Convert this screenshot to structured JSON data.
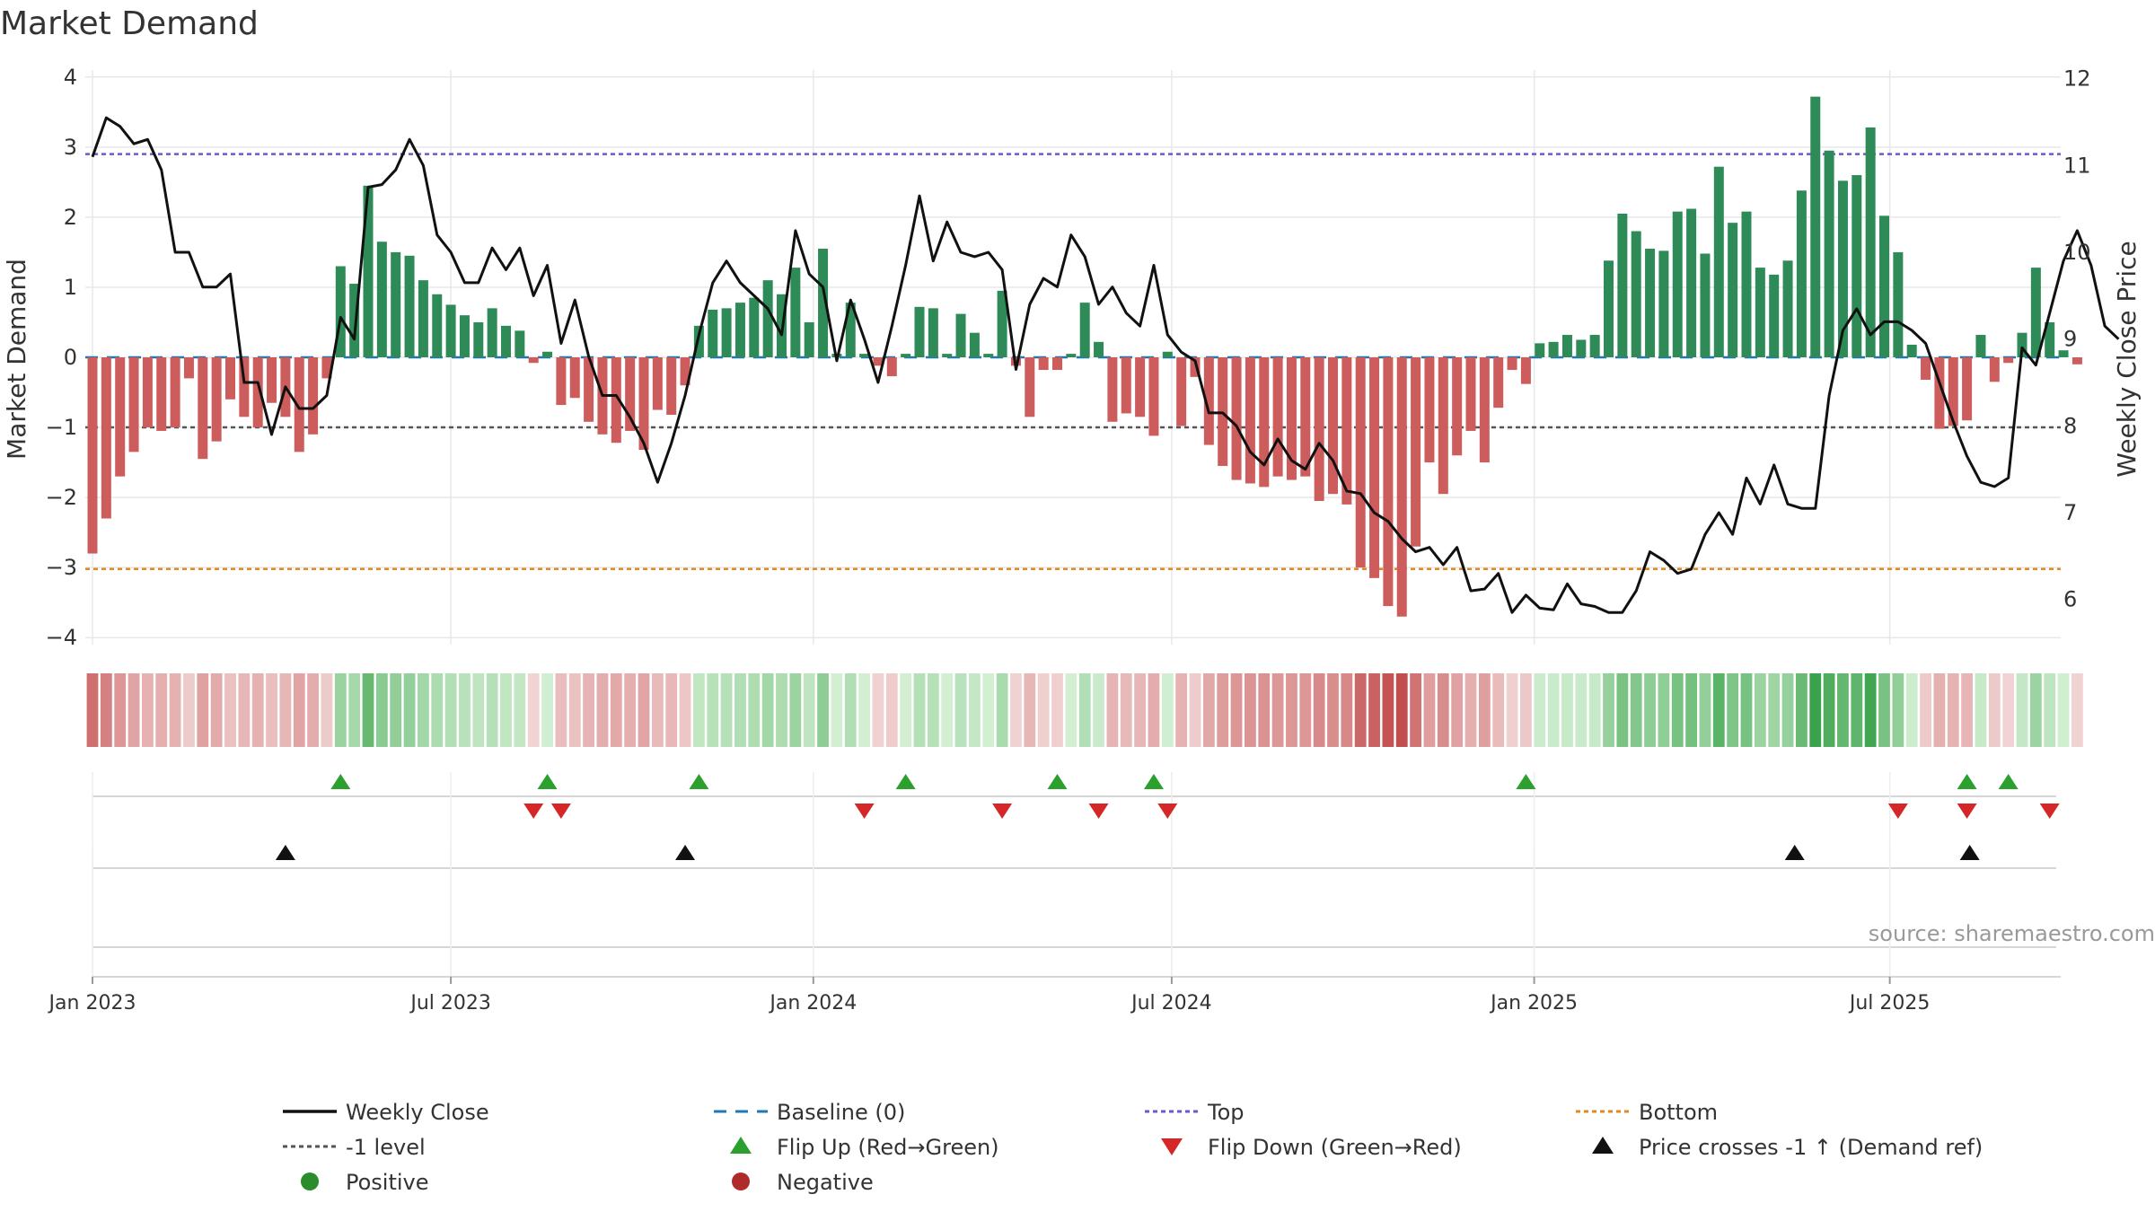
{
  "chart_data": {
    "type": "bar+line",
    "title": "Market Demand",
    "y_left_label": "Market Demand",
    "y_right_label": "Weekly Close Price",
    "y_left_range": [
      -4.1,
      4.1
    ],
    "y_left_ticks": [
      4,
      3,
      2,
      1,
      0,
      -1,
      -2,
      -3,
      -4
    ],
    "y_left_tick_labels": [
      "4",
      "3",
      "2",
      "1",
      "0",
      "−1",
      "−2",
      "−3",
      "−4"
    ],
    "y_right_range": [
      5.48,
      12.1
    ],
    "y_right_ticks": [
      12,
      11,
      10,
      9,
      8,
      7,
      6
    ],
    "y_right_tick_labels": [
      "12",
      "11",
      "10",
      "9",
      "8",
      "7",
      "6"
    ],
    "x_tick_labels": [
      "Jan 2023",
      "Jul 2023",
      "Jan 2024",
      "Jul 2024",
      "Jan 2025",
      "Jul 2025"
    ],
    "x_tick_weeks": [
      0,
      26,
      52.3,
      78.3,
      104.6,
      130.4
    ],
    "reference_lines": {
      "top": 2.9,
      "bottom": -3.02,
      "minus_one": -1,
      "baseline": 0
    },
    "source": "source: sharemaestro.com",
    "series": [
      {
        "name": "Market Demand",
        "values": [
          -2.8,
          -2.3,
          -1.7,
          -1.35,
          -1.0,
          -1.05,
          -1.0,
          -0.3,
          -1.45,
          -1.2,
          -0.6,
          -0.85,
          -1.0,
          -0.65,
          -0.85,
          -1.35,
          -1.1,
          -0.3,
          1.3,
          1.05,
          2.45,
          1.65,
          1.5,
          1.45,
          1.1,
          0.9,
          0.75,
          0.6,
          0.5,
          0.7,
          0.45,
          0.38,
          -0.08,
          0.08,
          -0.68,
          -0.58,
          -0.92,
          -1.1,
          -1.22,
          -1.05,
          -1.32,
          -0.75,
          -0.82,
          -0.4,
          0.45,
          0.68,
          0.7,
          0.78,
          0.85,
          1.1,
          0.9,
          1.28,
          0.5,
          1.55,
          0.05,
          0.78,
          0.05,
          -0.12,
          -0.27,
          0.05,
          0.72,
          0.7,
          0.05,
          0.62,
          0.35,
          0.05,
          0.95,
          -0.12,
          -0.85,
          -0.18,
          -0.18,
          0.05,
          0.78,
          0.22,
          -0.92,
          -0.8,
          -0.85,
          -1.12,
          0.08,
          -0.98,
          -0.28,
          -1.25,
          -1.55,
          -1.75,
          -1.8,
          -1.85,
          -1.7,
          -1.75,
          -1.7,
          -2.05,
          -1.95,
          -2.1,
          -3.0,
          -3.15,
          -3.55,
          -3.7,
          -2.7,
          -1.5,
          -1.95,
          -1.4,
          -1.05,
          -1.5,
          -0.72,
          -0.18,
          -0.38,
          0.2,
          0.22,
          0.32,
          0.25,
          0.32,
          1.38,
          2.05,
          1.8,
          1.55,
          1.52,
          2.08,
          2.12,
          1.48,
          2.72,
          1.92,
          2.08,
          1.28,
          1.18,
          1.38,
          2.38,
          3.72,
          2.95,
          2.52,
          2.6,
          3.28,
          2.02,
          1.5,
          0.18,
          -0.32,
          -1.02,
          -0.98,
          -0.9,
          0.32,
          -0.35,
          -0.08,
          0.35,
          1.28,
          0.5,
          0.1,
          -0.1
        ]
      },
      {
        "name": "Weekly Close",
        "values": [
          11.1,
          11.55,
          11.45,
          11.25,
          11.3,
          10.95,
          10.0,
          10.0,
          9.6,
          9.6,
          9.75,
          8.5,
          8.5,
          7.9,
          8.45,
          8.2,
          8.2,
          8.35,
          9.25,
          9.0,
          10.75,
          10.78,
          10.95,
          11.3,
          11.0,
          10.2,
          10.0,
          9.65,
          9.65,
          10.05,
          9.8,
          10.05,
          9.5,
          9.85,
          8.95,
          9.45,
          8.8,
          8.35,
          8.35,
          8.1,
          7.8,
          7.35,
          7.8,
          8.35,
          9.05,
          9.65,
          9.9,
          9.65,
          9.5,
          9.35,
          9.05,
          10.25,
          9.75,
          9.6,
          8.75,
          9.45,
          9.0,
          8.5,
          9.15,
          9.85,
          10.65,
          9.9,
          10.35,
          10.0,
          9.95,
          10.0,
          9.8,
          8.65,
          9.4,
          9.7,
          9.6,
          10.2,
          9.95,
          9.4,
          9.6,
          9.3,
          9.15,
          9.85,
          9.05,
          8.85,
          8.75,
          8.15,
          8.15,
          8.0,
          7.7,
          7.55,
          7.85,
          7.6,
          7.5,
          7.8,
          7.6,
          7.25,
          7.22,
          7.0,
          6.9,
          6.7,
          6.55,
          6.6,
          6.4,
          6.6,
          6.1,
          6.12,
          6.3,
          5.85,
          6.05,
          5.9,
          5.88,
          6.18,
          5.95,
          5.92,
          5.85,
          5.85,
          6.1,
          6.55,
          6.45,
          6.3,
          6.35,
          6.75,
          7.0,
          6.75,
          7.4,
          7.1,
          7.55,
          7.1,
          7.05,
          7.05,
          8.35,
          9.1,
          9.35,
          9.05,
          9.2,
          9.2,
          9.1,
          8.95,
          8.5,
          8.05,
          7.65,
          7.35,
          7.3,
          7.4,
          8.9,
          8.7,
          9.3,
          9.9,
          10.25,
          9.85,
          9.15,
          9.0
        ]
      }
    ],
    "intensity_strip": {
      "name": "Demand intensity",
      "values_ref": "Market Demand"
    },
    "flip_up_weeks": [
      18,
      33,
      44,
      59,
      70,
      77,
      104,
      136,
      139
    ],
    "flip_down_weeks": [
      32,
      34,
      56,
      66,
      73,
      78,
      131,
      136,
      142
    ],
    "price_cross_weeks": [
      14,
      43,
      123.5,
      136.2
    ],
    "legend": [
      {
        "label": "Weekly Close",
        "kind": "solid-line",
        "color": "#111111"
      },
      {
        "label": "Baseline (0)",
        "kind": "dashed-line",
        "color": "#1f77b4"
      },
      {
        "label": "Top",
        "kind": "dotted-line",
        "color": "#6a5acd"
      },
      {
        "label": "Bottom",
        "kind": "dotted-line",
        "color": "#e08a1e"
      },
      {
        "label": "-1 level",
        "kind": "dotted-line",
        "color": "#555555"
      },
      {
        "label": "Flip Up (Red→Green)",
        "kind": "triangle-up",
        "color": "#2ca02c"
      },
      {
        "label": "Flip Down (Green→Red)",
        "kind": "triangle-down",
        "color": "#d62728"
      },
      {
        "label": "Price crosses -1 ↑ (Demand ref)",
        "kind": "triangle-up",
        "color": "#111111"
      },
      {
        "label": "Positive",
        "kind": "dot",
        "color": "#2a8c2a"
      },
      {
        "label": "Negative",
        "kind": "dot",
        "color": "#b02a2a"
      }
    ],
    "colors": {
      "positive_bar": "#2e8b57",
      "negative_bar": "#cd5c5c",
      "price_line": "#111111",
      "top_line": "#6a5acd",
      "bottom_line": "#e08a1e",
      "minus_one_line": "#555555",
      "baseline": "#1f77b4",
      "flip_up": "#2ca02c",
      "flip_down": "#d62728",
      "cross": "#111111",
      "grid": "#e8e8e8",
      "text": "#333333",
      "source": "#999999"
    }
  }
}
